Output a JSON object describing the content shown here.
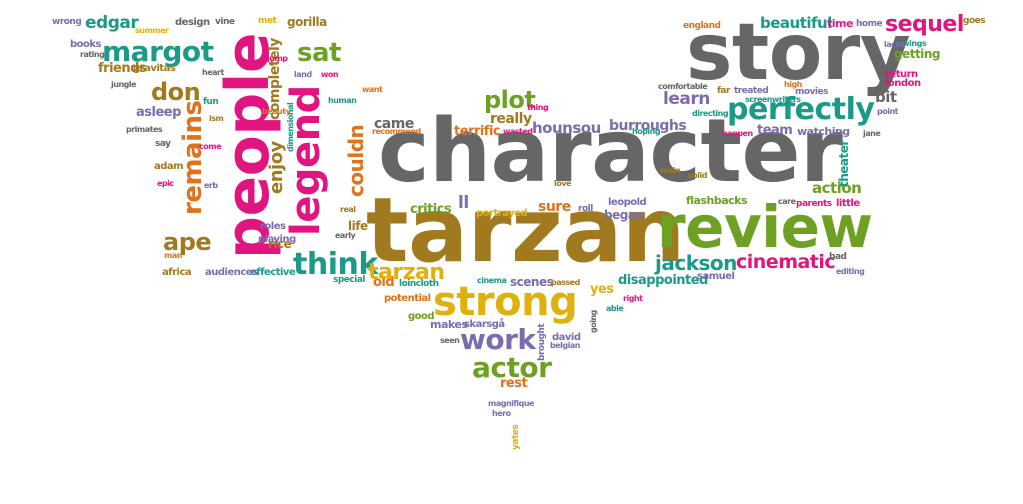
{
  "palette": {
    "gray": "#666666",
    "teal": "#1a9a87",
    "olive": "#a17a1f",
    "pink": "#e0157f",
    "green": "#6da023",
    "purple": "#7b6cae",
    "orange": "#e0721c",
    "gold": "#e0b10d"
  },
  "words": [
    {
      "text": "character",
      "color": "gray"
    },
    {
      "text": "tarzan",
      "color": "olive"
    },
    {
      "text": "people",
      "color": "pink"
    },
    {
      "text": "story",
      "color": "gray"
    },
    {
      "text": "review",
      "color": "green"
    },
    {
      "text": "strong",
      "color": "gold"
    },
    {
      "text": "legend",
      "color": "pink"
    },
    {
      "text": "margot",
      "color": "teal"
    },
    {
      "text": "remains",
      "color": "orange"
    },
    {
      "text": "perfectly",
      "color": "teal"
    },
    {
      "text": "couldn",
      "color": "orange"
    },
    {
      "text": "think",
      "color": "teal"
    },
    {
      "text": "ape",
      "color": "olive"
    },
    {
      "text": "work",
      "color": "purple"
    },
    {
      "text": "actor",
      "color": "green"
    },
    {
      "text": "sequel",
      "color": "pink"
    },
    {
      "text": "sat",
      "color": "green"
    },
    {
      "text": "don",
      "color": "olive"
    },
    {
      "text": "plot",
      "color": "green"
    },
    {
      "text": "enjoy",
      "color": "olive"
    },
    {
      "text": "cinematic",
      "color": "pink"
    },
    {
      "text": "jackson",
      "color": "teal"
    },
    {
      "text": "learn",
      "color": "purple"
    },
    {
      "text": "beautiful",
      "color": "teal"
    },
    {
      "text": "edgar",
      "color": "teal"
    },
    {
      "text": "completely",
      "color": "olive"
    },
    {
      "text": "action",
      "color": "green"
    },
    {
      "text": "getting",
      "color": "green"
    },
    {
      "text": "hounsou",
      "color": "purple"
    },
    {
      "text": "burroughs",
      "color": "purple"
    },
    {
      "text": "friends",
      "color": "olive"
    },
    {
      "text": "really",
      "color": "olive"
    },
    {
      "text": "came",
      "color": "gray"
    },
    {
      "text": "terrific",
      "color": "orange"
    },
    {
      "text": "bit",
      "color": "gray"
    },
    {
      "text": "theater",
      "color": "teal"
    },
    {
      "text": "critics",
      "color": "green"
    },
    {
      "text": "sure",
      "color": "orange"
    },
    {
      "text": "ll",
      "color": "purple"
    },
    {
      "text": "began",
      "color": "purple"
    },
    {
      "text": "disappointed",
      "color": "teal"
    },
    {
      "text": "yes",
      "color": "gold"
    },
    {
      "text": "old",
      "color": "orange"
    },
    {
      "text": "rest",
      "color": "orange"
    },
    {
      "text": "team",
      "color": "purple"
    },
    {
      "text": "watching",
      "color": "purple"
    },
    {
      "text": "asleep",
      "color": "purple"
    },
    {
      "text": "gorilla",
      "color": "olive"
    },
    {
      "text": "scenes",
      "color": "purple"
    },
    {
      "text": "rice",
      "color": "olive"
    },
    {
      "text": "life",
      "color": "olive"
    },
    {
      "text": "portrayed",
      "color": "gold"
    },
    {
      "text": "flashbacks",
      "color": "green"
    },
    {
      "text": "leopold",
      "color": "purple"
    },
    {
      "text": "makes",
      "color": "purple"
    },
    {
      "text": "africa",
      "color": "olive"
    },
    {
      "text": "return",
      "color": "pink"
    },
    {
      "text": "london",
      "color": "pink"
    },
    {
      "text": "playing",
      "color": "purple"
    },
    {
      "text": "books",
      "color": "purple"
    },
    {
      "text": "wrong",
      "color": "purple"
    },
    {
      "text": "gravitas",
      "color": "olive"
    },
    {
      "text": "roles",
      "color": "purple"
    },
    {
      "text": "effective",
      "color": "teal"
    },
    {
      "text": "audiences",
      "color": "purple"
    },
    {
      "text": "potential",
      "color": "orange"
    },
    {
      "text": "good",
      "color": "green"
    },
    {
      "text": "skarsgå",
      "color": "purple"
    },
    {
      "text": "david",
      "color": "purple"
    },
    {
      "text": "samuel",
      "color": "purple"
    },
    {
      "text": "roll",
      "color": "purple"
    },
    {
      "text": "special",
      "color": "teal"
    },
    {
      "text": "little",
      "color": "pink"
    },
    {
      "text": "parents",
      "color": "pink"
    },
    {
      "text": "design",
      "color": "gray"
    },
    {
      "text": "vine",
      "color": "gray"
    },
    {
      "text": "met",
      "color": "gold"
    },
    {
      "text": "adam",
      "color": "olive"
    },
    {
      "text": "say",
      "color": "gray"
    },
    {
      "text": "time",
      "color": "pink"
    },
    {
      "text": "home",
      "color": "purple"
    },
    {
      "text": "goes",
      "color": "olive"
    },
    {
      "text": "england",
      "color": "orange"
    },
    {
      "text": "swings",
      "color": "teal"
    },
    {
      "text": "lacks",
      "color": "purple"
    },
    {
      "text": "comfortable",
      "color": "gray"
    },
    {
      "text": "far",
      "color": "olive"
    },
    {
      "text": "treated",
      "color": "purple"
    },
    {
      "text": "movies",
      "color": "purple"
    },
    {
      "text": "high",
      "color": "orange"
    },
    {
      "text": "screenwriters",
      "color": "teal"
    },
    {
      "text": "directing",
      "color": "teal"
    },
    {
      "text": "hoping",
      "color": "teal"
    },
    {
      "text": "happen",
      "color": "pink"
    },
    {
      "text": "wasted",
      "color": "pink"
    },
    {
      "text": "recommend",
      "color": "orange"
    },
    {
      "text": "bad",
      "color": "gray"
    },
    {
      "text": "editing",
      "color": "purple"
    },
    {
      "text": "care",
      "color": "gray"
    },
    {
      "text": "loincloth",
      "color": "teal"
    },
    {
      "text": "cinema",
      "color": "teal"
    },
    {
      "text": "passed",
      "color": "olive"
    },
    {
      "text": "able",
      "color": "teal"
    },
    {
      "text": "right",
      "color": "pink"
    },
    {
      "text": "brought",
      "color": "purple"
    },
    {
      "text": "belgian",
      "color": "purple"
    },
    {
      "text": "magnifique",
      "color": "purple"
    },
    {
      "text": "hero",
      "color": "purple"
    },
    {
      "text": "yates",
      "color": "gold"
    },
    {
      "text": "seen",
      "color": "gray"
    },
    {
      "text": "going",
      "color": "gray"
    },
    {
      "text": "summer",
      "color": "gold"
    },
    {
      "text": "rating",
      "color": "gray"
    },
    {
      "text": "jump",
      "color": "pink"
    },
    {
      "text": "land",
      "color": "purple"
    },
    {
      "text": "won",
      "color": "pink"
    },
    {
      "text": "want",
      "color": "orange"
    },
    {
      "text": "human",
      "color": "teal"
    },
    {
      "text": "beauty",
      "color": "orange"
    },
    {
      "text": "dimensional",
      "color": "teal"
    },
    {
      "text": "fun",
      "color": "teal"
    },
    {
      "text": "ism",
      "color": "olive"
    },
    {
      "text": "heart",
      "color": "gray"
    },
    {
      "text": "jungle",
      "color": "gray"
    },
    {
      "text": "primates",
      "color": "gray"
    },
    {
      "text": "epic",
      "color": "pink"
    },
    {
      "text": "erb",
      "color": "purple"
    },
    {
      "text": "come",
      "color": "pink"
    },
    {
      "text": "real",
      "color": "olive"
    },
    {
      "text": "early",
      "color": "gray"
    },
    {
      "text": "thing",
      "color": "pink"
    },
    {
      "text": "man",
      "color": "orange"
    },
    {
      "text": "point",
      "color": "purple"
    },
    {
      "text": "jane",
      "color": "gray"
    },
    {
      "text": "love",
      "color": "olive"
    },
    {
      "text": "main",
      "color": "olive"
    },
    {
      "text": "solid",
      "color": "olive"
    },
    {
      "text": "tarzan",
      "color": "gold"
    }
  ]
}
